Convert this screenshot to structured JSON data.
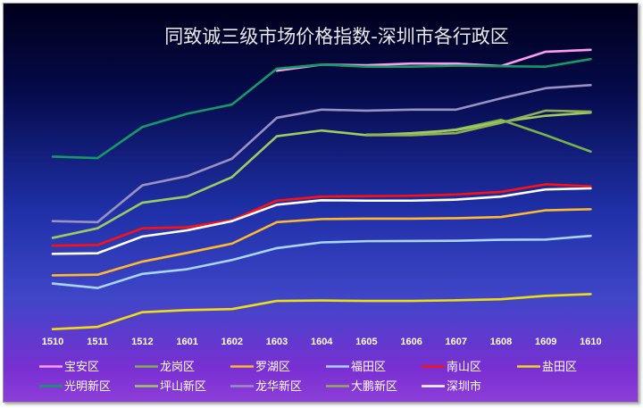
{
  "chart_data": {
    "type": "line",
    "title": "同致诚三级市场价格指数-深圳市各行政区",
    "categories": [
      "1510",
      "1511",
      "1512",
      "1601",
      "1602",
      "1603",
      "1604",
      "1605",
      "1606",
      "1607",
      "1608",
      "1609",
      "1610"
    ],
    "legend_position": "bottom",
    "grid": false,
    "series": [
      {
        "name": "宝安区",
        "color": "#ff9cf0",
        "values": [
          null,
          null,
          null,
          null,
          null,
          91.5,
          94.5,
          94.2,
          95.0,
          95.0,
          93.8,
          100.8,
          101.7
        ]
      },
      {
        "name": "龙岗区",
        "color": "#7ab34a",
        "values": [
          null,
          null,
          null,
          null,
          null,
          null,
          null,
          60.3,
          60.2,
          62.8,
          67.5,
          60.0,
          52.0
        ]
      },
      {
        "name": "罗湖区",
        "color": "#ffb830",
        "values": [
          -8.5,
          -8.2,
          -1.8,
          2.5,
          7.0,
          17.5,
          19.0,
          19.2,
          19.2,
          19.4,
          20.0,
          23.3,
          23.8
        ]
      },
      {
        "name": "福田区",
        "color": "#a9d4ff",
        "values": [
          -12.5,
          -14.7,
          -7.8,
          -5.5,
          -1.0,
          4.8,
          7.6,
          8.2,
          8.3,
          8.4,
          8.9,
          9.0,
          10.8
        ]
      },
      {
        "name": "南山区",
        "color": "#ff1010",
        "values": [
          6.0,
          6.3,
          14.5,
          15.0,
          18.5,
          28.0,
          30.0,
          30.2,
          30.4,
          31.0,
          32.3,
          36.0,
          35.0
        ]
      },
      {
        "name": "盐田区",
        "color": "#f0dc14",
        "values": [
          -34.8,
          -33.7,
          -26.5,
          -25.5,
          -25.0,
          -21.0,
          -20.8,
          -21.0,
          -21.0,
          -20.7,
          -20.2,
          -18.5,
          -17.7
        ]
      },
      {
        "name": "光明新区",
        "color": "#149a64",
        "values": [
          49.5,
          48.8,
          64.0,
          70.5,
          75.0,
          92.5,
          94.5,
          93.5,
          93.5,
          94.0,
          93.7,
          93.5,
          97.2
        ]
      },
      {
        "name": "坪山新区",
        "color": "#9ecb60",
        "values": [
          9.8,
          14.5,
          27.0,
          30.0,
          39.5,
          59.5,
          62.3,
          60.0,
          61.0,
          62.5,
          66.5,
          69.5,
          71.0
        ]
      },
      {
        "name": "龙华新区",
        "color": "#9a90c2",
        "values": [
          18.0,
          17.5,
          35.5,
          40.0,
          48.5,
          68.5,
          72.5,
          72.0,
          72.5,
          72.5,
          78.0,
          83.0,
          84.5
        ]
      },
      {
        "name": "大鹏新区",
        "color": "#8fae55",
        "values": [
          null,
          null,
          null,
          null,
          null,
          null,
          null,
          60.0,
          60.0,
          61.0,
          66.0,
          72.0,
          71.5
        ]
      },
      {
        "name": "深圳市",
        "color": "#ffffff",
        "values": [
          2.0,
          2.3,
          10.5,
          13.5,
          18.0,
          26.0,
          28.2,
          28.0,
          28.0,
          28.5,
          30.0,
          33.5,
          34.0
        ]
      }
    ],
    "ylim": [
      -38,
      106
    ]
  }
}
